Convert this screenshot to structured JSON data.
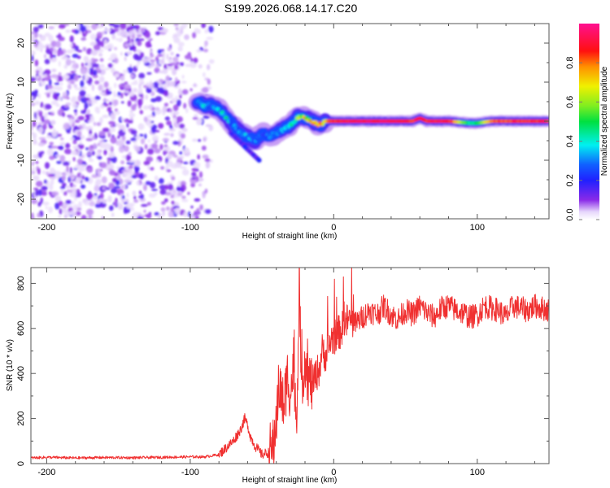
{
  "title": "S199.2026.068.14.17.C20",
  "colors": {
    "snr_line": "#f03030",
    "frame": "#555555",
    "spectrogram_noise": "#7a2be0"
  },
  "chart_data": [
    {
      "type": "heatmap",
      "name": "spectrogram",
      "xlabel": "Height of straight line (km)",
      "ylabel": "Frequency (Hz)",
      "xlim": [
        -211,
        150
      ],
      "ylim": [
        -25,
        25
      ],
      "xticks": [
        -200,
        -100,
        0,
        100
      ],
      "xtick_labels": [
        "-200",
        "-100",
        "0",
        "100"
      ],
      "yticks": [
        -20,
        -10,
        0,
        10,
        20
      ],
      "ytick_labels": [
        "-20",
        "-10",
        "0",
        "10",
        "20"
      ],
      "colorbar": {
        "label": "Normalized spectral amplitude",
        "range": [
          0,
          1
        ],
        "ticks": [
          0.0,
          0.2,
          0.4,
          0.6,
          0.8
        ],
        "tick_labels": [
          "0.0",
          "0.2",
          "0.4",
          "0.6",
          "0.8"
        ],
        "colormap": "rainbow (white-violet-blue-cyan-green-yellow-red-magenta)"
      },
      "ridge": {
        "description": "dominant frequency track vs height",
        "height_km": [
          -95,
          -90,
          -85,
          -80,
          -75,
          -70,
          -65,
          -60,
          -55,
          -50,
          -45,
          -40,
          -35,
          -30,
          -25,
          -20,
          -15,
          -10,
          -5,
          0,
          20,
          40,
          55,
          60,
          65,
          80,
          95,
          100,
          110,
          130,
          150
        ],
        "frequency_hz": [
          5,
          4,
          4,
          3,
          1,
          -1,
          -3,
          -4,
          -5,
          -3,
          -4,
          -3,
          -2,
          -1,
          1,
          1,
          0,
          -1,
          0,
          0,
          0,
          0,
          0,
          0.8,
          0,
          0,
          -0.5,
          -0.5,
          0,
          0,
          0
        ],
        "amplitude": [
          0.3,
          0.35,
          0.3,
          0.35,
          0.4,
          0.3,
          0.3,
          0.35,
          0.3,
          0.25,
          0.3,
          0.3,
          0.35,
          0.4,
          0.55,
          0.7,
          0.75,
          0.8,
          0.8,
          0.9,
          0.95,
          0.95,
          0.9,
          0.95,
          0.9,
          0.95,
          0.45,
          0.5,
          0.85,
          0.9,
          0.9
        ]
      },
      "noise_region_km": [
        -211,
        -85
      ]
    },
    {
      "type": "line",
      "name": "snr",
      "xlabel": "Height of straight line (km)",
      "ylabel": "SNR (10 * v/v)",
      "xlim": [
        -211,
        150
      ],
      "ylim": [
        0,
        870
      ],
      "xticks": [
        -200,
        -100,
        0,
        100
      ],
      "xtick_labels": [
        "-200",
        "-100",
        "0",
        "100"
      ],
      "yticks": [
        0,
        200,
        400,
        600,
        800
      ],
      "ytick_labels": [
        "0",
        "200",
        "400",
        "600",
        "800"
      ],
      "series": [
        {
          "name": "SNR",
          "x": [
            -211,
            -200,
            -180,
            -160,
            -140,
            -120,
            -100,
            -90,
            -80,
            -75,
            -70,
            -65,
            -62,
            -60,
            -58,
            -55,
            -50,
            -45,
            -42,
            -40,
            -38,
            -35,
            -32,
            -30,
            -28,
            -26,
            -24,
            -22,
            -20,
            -18,
            -15,
            -12,
            -10,
            -8,
            -5,
            -2,
            0,
            5,
            10,
            15,
            20,
            25,
            30,
            35,
            40,
            45,
            50,
            55,
            60,
            65,
            70,
            75,
            80,
            85,
            90,
            95,
            100,
            105,
            110,
            115,
            120,
            125,
            130,
            135,
            140,
            145,
            150
          ],
          "y": [
            25,
            28,
            25,
            27,
            26,
            28,
            30,
            30,
            40,
            70,
            100,
            150,
            200,
            170,
            120,
            80,
            40,
            50,
            80,
            200,
            350,
            250,
            400,
            300,
            450,
            200,
            700,
            350,
            480,
            380,
            350,
            400,
            420,
            500,
            480,
            550,
            560,
            590,
            640,
            620,
            650,
            680,
            660,
            700,
            660,
            640,
            680,
            660,
            700,
            670,
            650,
            690,
            700,
            680,
            670,
            650,
            660,
            700,
            690,
            680,
            650,
            700,
            690,
            680,
            700,
            690,
            680
          ]
        }
      ],
      "grid": false
    }
  ]
}
